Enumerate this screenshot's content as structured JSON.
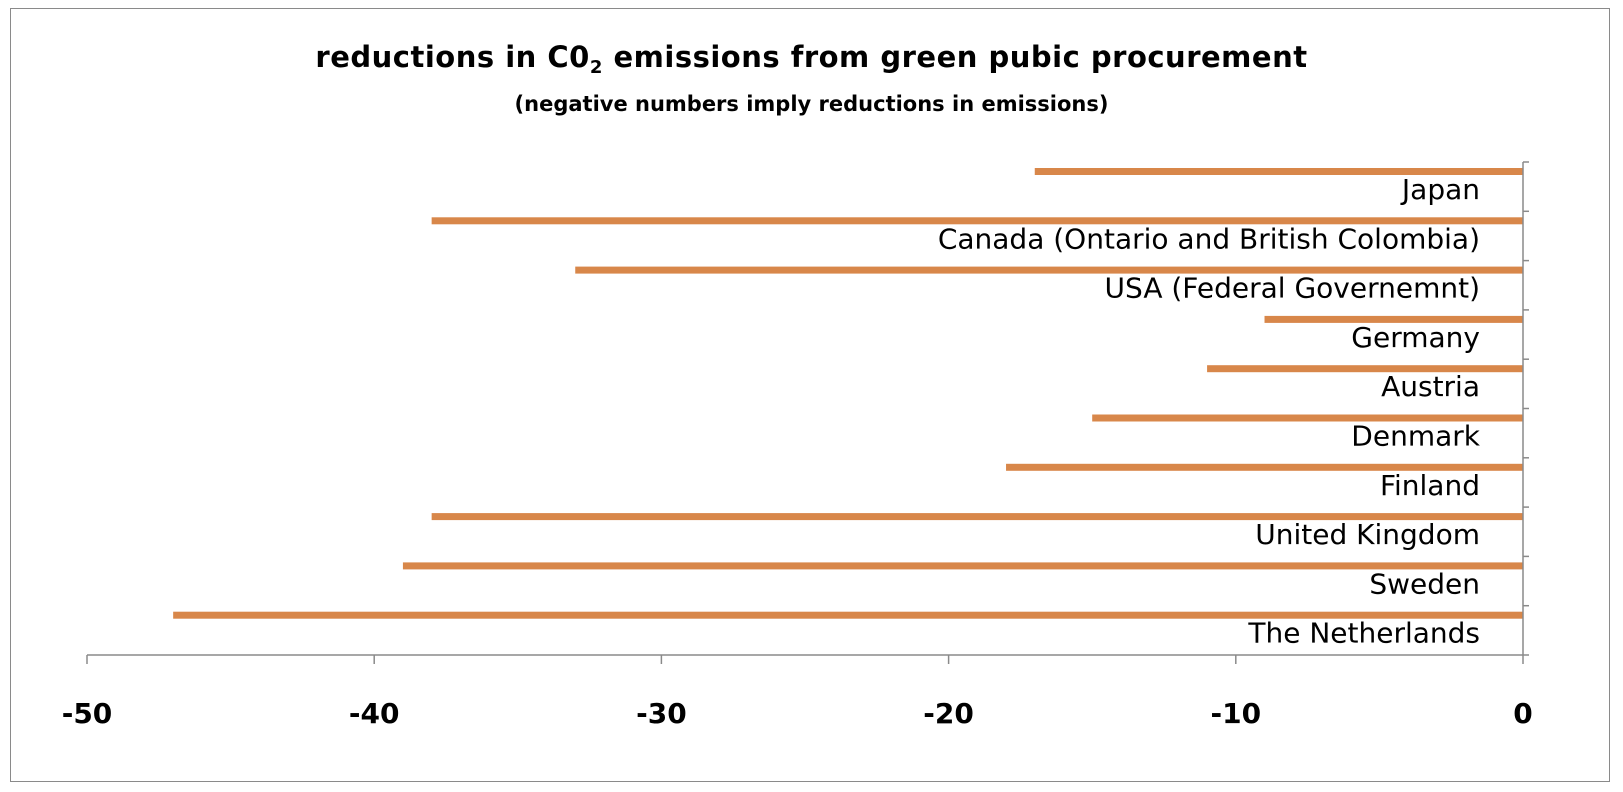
{
  "chart_data": {
    "type": "bar",
    "orientation": "horizontal",
    "title_main": "reductions in C0",
    "title_sub": "2",
    "title_rest": " emissions from green pubic procurement",
    "subtitle": "(negative numbers imply reductions in emissions)",
    "categories": [
      "Japan",
      "Canada (Ontario and British Colombia)",
      "USA (Federal Governemnt)",
      "Germany",
      "Austria",
      "Denmark",
      "Finland",
      "United Kingdom",
      "Sweden",
      "The Netherlands"
    ],
    "values": [
      -17,
      -38,
      -33,
      -9,
      -11,
      -15,
      -18,
      -38,
      -39,
      -47
    ],
    "xlim": [
      -50,
      0
    ],
    "xticks": [
      -50,
      -40,
      -30,
      -20,
      -10,
      0
    ],
    "xtick_labels": [
      "-50",
      "-40",
      "-30",
      "-20",
      "-10",
      "0"
    ],
    "bar_color": "#d8874a",
    "grid": false,
    "legend": "none"
  }
}
